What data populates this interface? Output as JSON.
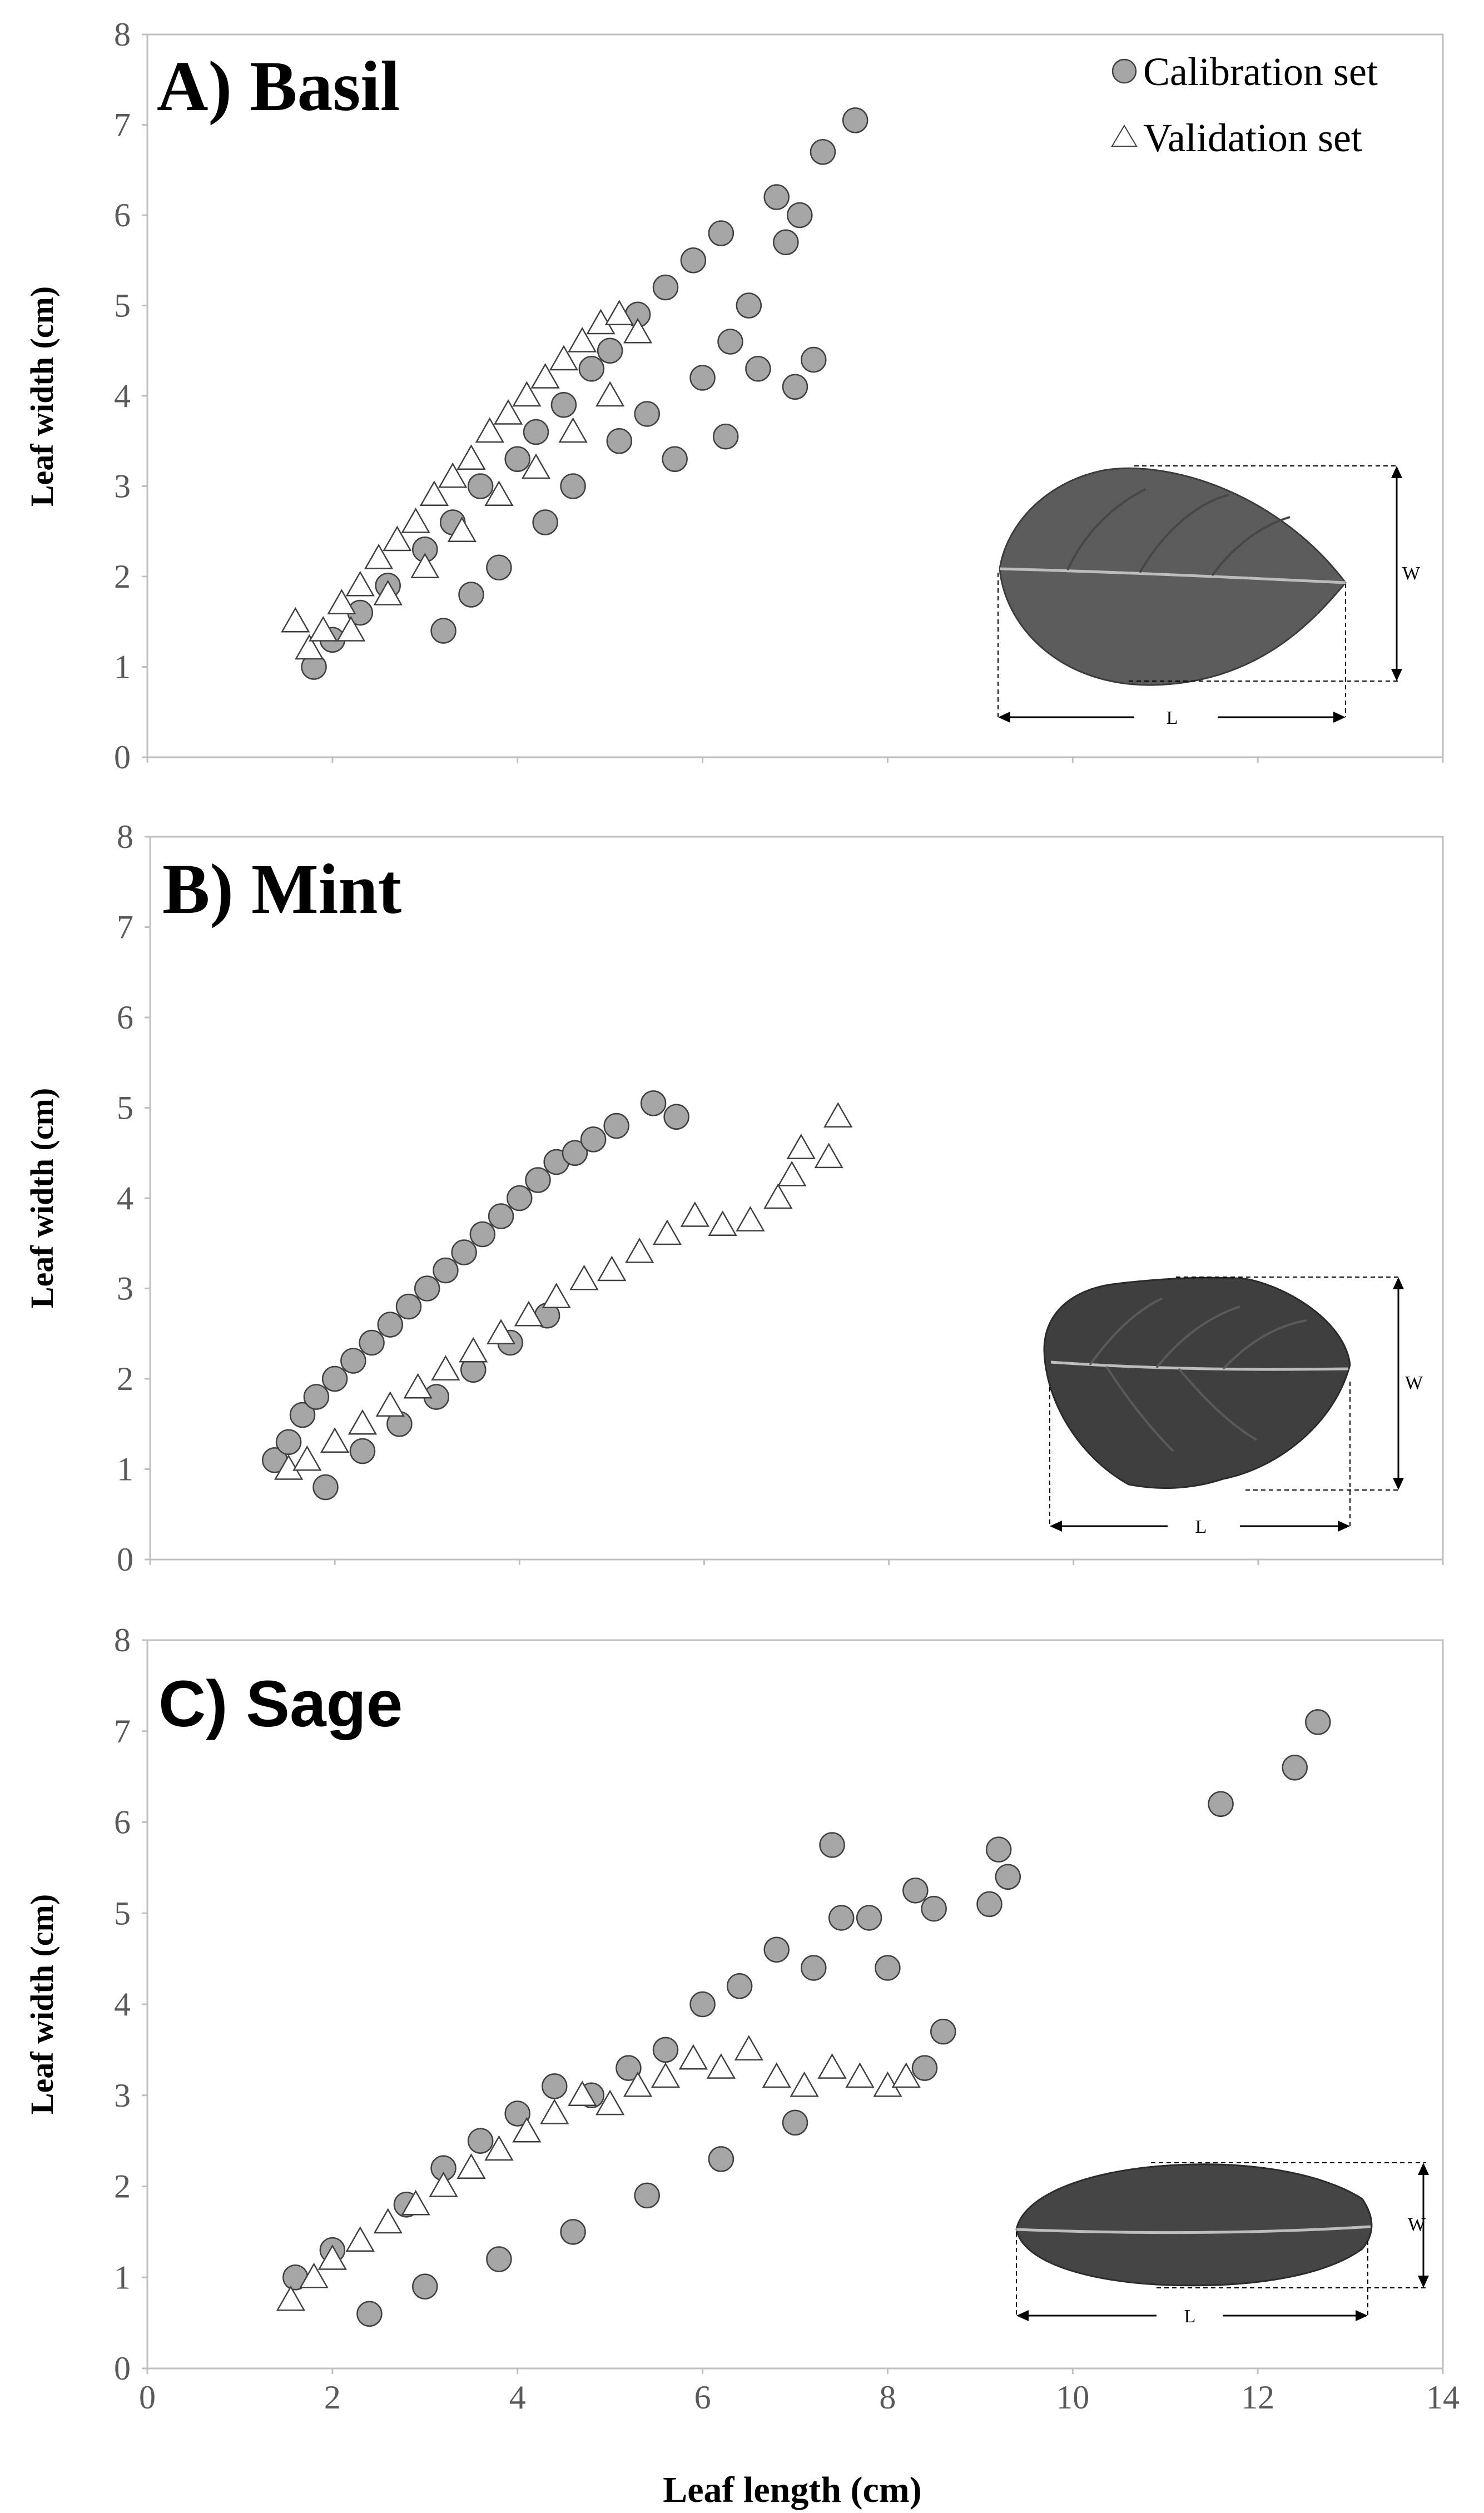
{
  "chart_data": [
    {
      "type": "scatter",
      "title": "A) Basil",
      "xlabel": "",
      "ylabel": "Leaf width (cm)",
      "xlim": [
        0,
        14
      ],
      "ylim": [
        0,
        8
      ],
      "yticks": [
        "0",
        "1",
        "2",
        "3",
        "4",
        "5",
        "6",
        "7",
        "8"
      ],
      "xticks": [],
      "legend": {
        "position": "top-right",
        "entries": [
          "Calibration set",
          "Validation set"
        ]
      },
      "inset": {
        "width_label": "W",
        "length_label": "L"
      },
      "series": [
        {
          "name": "Calibration set",
          "marker": "circle",
          "x": [
            1.8,
            2.0,
            2.3,
            2.6,
            3.0,
            3.3,
            3.6,
            4.0,
            4.2,
            4.5,
            4.8,
            5.0,
            5.3,
            5.6,
            5.9,
            6.2,
            6.5,
            6.8,
            7.0,
            7.2,
            7.3,
            7.65,
            3.2,
            3.5,
            3.8,
            4.3,
            4.6,
            5.1,
            5.4,
            5.7,
            6.0,
            6.3,
            6.6,
            6.9,
            7.05,
            6.25
          ],
          "y": [
            1.0,
            1.3,
            1.6,
            1.9,
            2.3,
            2.6,
            3.0,
            3.3,
            3.6,
            3.9,
            4.3,
            4.5,
            4.9,
            5.2,
            5.5,
            5.8,
            5.0,
            6.2,
            4.1,
            4.4,
            6.7,
            7.05,
            1.4,
            1.8,
            2.1,
            2.6,
            3.0,
            3.5,
            3.8,
            3.3,
            4.2,
            4.6,
            4.3,
            5.7,
            6.0,
            3.55
          ]
        },
        {
          "name": "Validation set",
          "marker": "triangle",
          "x": [
            1.6,
            1.75,
            1.9,
            2.1,
            2.3,
            2.5,
            2.7,
            2.9,
            3.1,
            3.3,
            3.5,
            3.7,
            3.9,
            4.1,
            4.3,
            4.5,
            4.7,
            4.9,
            5.1,
            5.3,
            2.2,
            2.6,
            3.0,
            3.4,
            3.8,
            4.2,
            4.6,
            5.0
          ],
          "y": [
            1.5,
            1.2,
            1.4,
            1.7,
            1.9,
            2.2,
            2.4,
            2.6,
            2.9,
            3.1,
            3.3,
            3.6,
            3.8,
            4.0,
            4.2,
            4.4,
            4.6,
            4.8,
            4.9,
            4.7,
            1.4,
            1.8,
            2.1,
            2.5,
            2.9,
            3.2,
            3.6,
            4.0
          ]
        }
      ]
    },
    {
      "type": "scatter",
      "title": "B) Mint",
      "xlabel": "",
      "ylabel": "Leaf width (cm)",
      "xlim": [
        0,
        14
      ],
      "ylim": [
        0,
        8
      ],
      "yticks": [
        "0",
        "1",
        "2",
        "3",
        "4",
        "5",
        "6",
        "7",
        "8"
      ],
      "xticks": [],
      "inset": {
        "width_label": "W",
        "length_label": "L"
      },
      "series": [
        {
          "name": "Calibration set",
          "marker": "circle",
          "x": [
            1.35,
            1.5,
            1.65,
            1.8,
            1.9,
            2.0,
            2.2,
            2.4,
            2.6,
            2.8,
            3.0,
            3.2,
            3.4,
            3.6,
            3.8,
            4.0,
            4.2,
            4.4,
            4.6,
            4.8,
            5.05,
            5.45,
            5.7,
            2.3,
            2.7,
            3.1,
            3.5,
            3.9,
            4.3
          ],
          "y": [
            1.1,
            1.3,
            1.6,
            1.8,
            0.8,
            2.0,
            2.2,
            2.4,
            2.6,
            2.8,
            3.0,
            3.2,
            3.4,
            3.6,
            3.8,
            4.0,
            4.2,
            4.4,
            4.5,
            4.65,
            4.8,
            5.05,
            4.9,
            1.2,
            1.5,
            1.8,
            2.1,
            2.4,
            2.7
          ]
        },
        {
          "name": "Validation set",
          "marker": "triangle",
          "x": [
            1.5,
            1.7,
            2.0,
            2.3,
            2.6,
            2.9,
            3.2,
            3.5,
            3.8,
            4.1,
            4.4,
            4.7,
            5.0,
            5.3,
            5.6,
            5.9,
            6.2,
            6.5,
            6.8,
            6.95,
            7.05,
            7.35,
            7.45
          ],
          "y": [
            1.0,
            1.1,
            1.3,
            1.5,
            1.7,
            1.9,
            2.1,
            2.3,
            2.5,
            2.7,
            2.9,
            3.1,
            3.2,
            3.4,
            3.6,
            3.8,
            3.7,
            3.75,
            4.0,
            4.25,
            4.55,
            4.45,
            4.9
          ]
        }
      ]
    },
    {
      "type": "scatter",
      "title": "C) Sage",
      "xlabel": "Leaf length (cm)",
      "ylabel": "Leaf width (cm)",
      "xlim": [
        0,
        14
      ],
      "ylim": [
        0,
        8
      ],
      "yticks": [
        "0",
        "1",
        "2",
        "3",
        "4",
        "5",
        "6",
        "7",
        "8"
      ],
      "xticks": [
        "0",
        "2",
        "4",
        "6",
        "8",
        "10",
        "12",
        "14"
      ],
      "inset": {
        "width_label": "W",
        "length_label": "L"
      },
      "series": [
        {
          "name": "Calibration set",
          "marker": "circle",
          "x": [
            1.6,
            2.0,
            2.4,
            2.8,
            3.2,
            3.6,
            4.0,
            4.4,
            4.8,
            5.2,
            5.6,
            6.0,
            6.4,
            6.8,
            7.2,
            7.4,
            7.5,
            7.8,
            8.0,
            8.3,
            8.5,
            8.6,
            9.1,
            9.2,
            9.3,
            11.6,
            12.4,
            12.65,
            3.0,
            3.8,
            4.6,
            5.4,
            6.2,
            7.0,
            8.4
          ],
          "y": [
            1.0,
            1.3,
            0.6,
            1.8,
            2.2,
            2.5,
            2.8,
            3.1,
            3.0,
            3.3,
            3.5,
            4.0,
            4.2,
            4.6,
            4.4,
            5.75,
            4.95,
            4.95,
            4.4,
            5.25,
            5.05,
            3.7,
            5.1,
            5.7,
            5.4,
            6.2,
            6.6,
            7.1,
            0.9,
            1.2,
            1.5,
            1.9,
            2.3,
            2.7,
            3.3
          ]
        },
        {
          "name": "Validation set",
          "marker": "triangle",
          "x": [
            1.55,
            1.8,
            2.0,
            2.3,
            2.6,
            2.9,
            3.2,
            3.5,
            3.8,
            4.1,
            4.4,
            4.7,
            5.0,
            5.3,
            5.6,
            5.9,
            6.2,
            6.5,
            6.8,
            7.1,
            7.4,
            7.7,
            8.0,
            8.2
          ],
          "y": [
            0.75,
            1.0,
            1.2,
            1.4,
            1.6,
            1.8,
            2.0,
            2.2,
            2.4,
            2.6,
            2.8,
            3.0,
            2.9,
            3.1,
            3.2,
            3.4,
            3.3,
            3.5,
            3.2,
            3.1,
            3.3,
            3.2,
            3.1,
            3.2
          ]
        }
      ]
    }
  ]
}
